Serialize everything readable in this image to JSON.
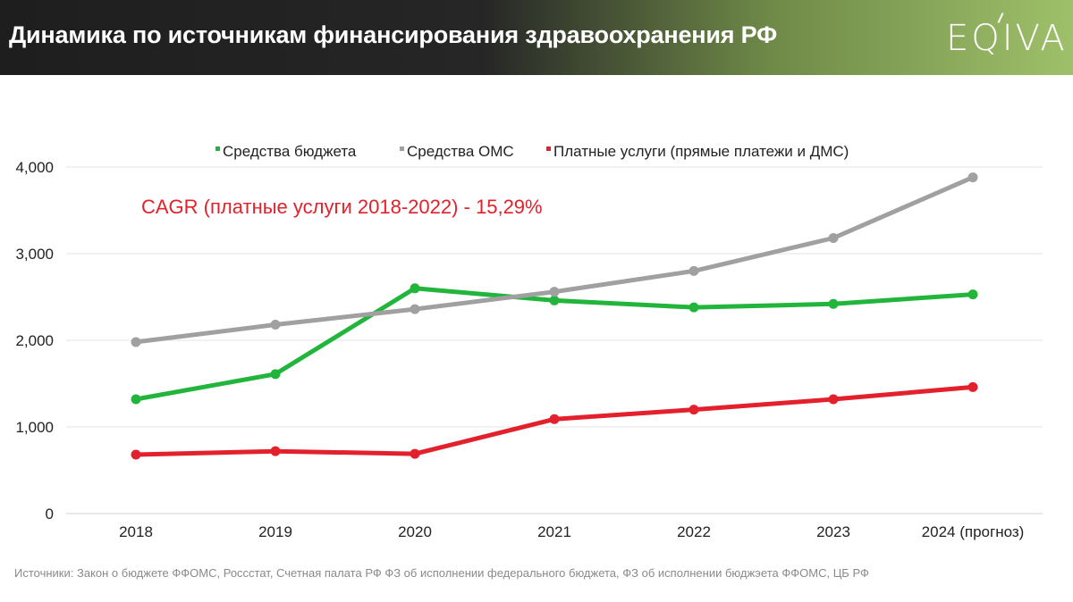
{
  "header": {
    "title": "Динамика по источникам финансирования здравоохранения РФ",
    "logo": "EQIVA"
  },
  "annotation": "CAGR (платные услуги 2018-2022) - 15,29%",
  "source": "Источники:  Закон о бюджете  ФФОМС,  Россстат, Счетная палата РФ ФЗ об исполнении федерального бюджета, ФЗ об исполнении бюджэета ФФОМС, ЦБ РФ",
  "chart_data": {
    "type": "line",
    "title": "Динамика по источникам финансирования здравоохранения РФ",
    "xlabel": "",
    "ylabel": "",
    "categories": [
      "2018",
      "2019",
      "2020",
      "2021",
      "2022",
      "2023",
      "2024 (прогноз)"
    ],
    "ylim": [
      0,
      4000
    ],
    "yticks": [
      0,
      1000,
      2000,
      3000,
      4000
    ],
    "ytick_labels": [
      "0",
      "1,000",
      "2,000",
      "3,000",
      "4,000"
    ],
    "grid": true,
    "legend_position": "top-center",
    "series": [
      {
        "name": "Средства бюджета",
        "color": "#22b53c",
        "values": [
          1320,
          1610,
          2600,
          2460,
          2380,
          2420,
          2530
        ]
      },
      {
        "name": "Средства ОМС",
        "color": "#a0a0a0",
        "values": [
          1980,
          2180,
          2360,
          2560,
          2800,
          3180,
          3880
        ]
      },
      {
        "name": "Платные услуги (прямые платежи и ДМС)",
        "color": "#e3212c",
        "values": [
          680,
          720,
          690,
          1090,
          1200,
          1320,
          1460
        ]
      }
    ]
  }
}
